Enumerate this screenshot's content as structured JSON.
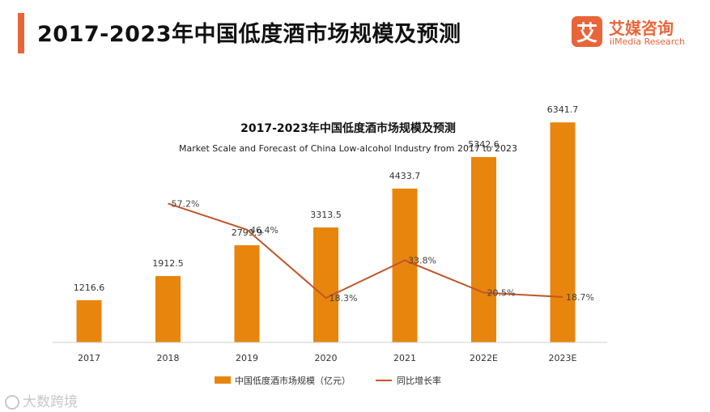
{
  "header": {
    "title": "2017-2023年中国低度酒市场规模及预测"
  },
  "logo": {
    "mark": "艾",
    "name_cn": "艾媒咨询",
    "name_en": "iiMedia Research"
  },
  "watermark": {
    "text": "大数跨境"
  },
  "colors": {
    "accent": "#e8653a",
    "bar": "#e8850c",
    "line": "#c0562a"
  },
  "chart_data": {
    "type": "bar",
    "title": "2017-2023年中国低度酒市场规模及预测",
    "subtitle": "Market Scale and Forecast of China Low-alcohol Industry from 2017 to 2023",
    "categories": [
      "2017",
      "2018",
      "2019",
      "2020",
      "2021",
      "2022E",
      "2023E"
    ],
    "series": [
      {
        "name": "中国低度酒市场规模（亿元）",
        "type": "bar",
        "values": [
          1216.6,
          1912.5,
          2799.9,
          3313.5,
          4433.7,
          5342.6,
          6341.7
        ],
        "labels": [
          "1216.6",
          "1912.5",
          "2799.9",
          "3313.5",
          "4433.7",
          "5342.6",
          "6341.7"
        ]
      },
      {
        "name": "同比增长率",
        "type": "line",
        "values": [
          null,
          57.2,
          46.4,
          18.3,
          33.8,
          20.5,
          18.7
        ],
        "labels": [
          "",
          "57.2%",
          "46.4%",
          "18.3%",
          "33.8%",
          "20.5%",
          "18.7%"
        ]
      }
    ],
    "ylim": [
      0,
      7000
    ],
    "y2lim": [
      0,
      100
    ],
    "grid": false,
    "legend": "bottom"
  }
}
